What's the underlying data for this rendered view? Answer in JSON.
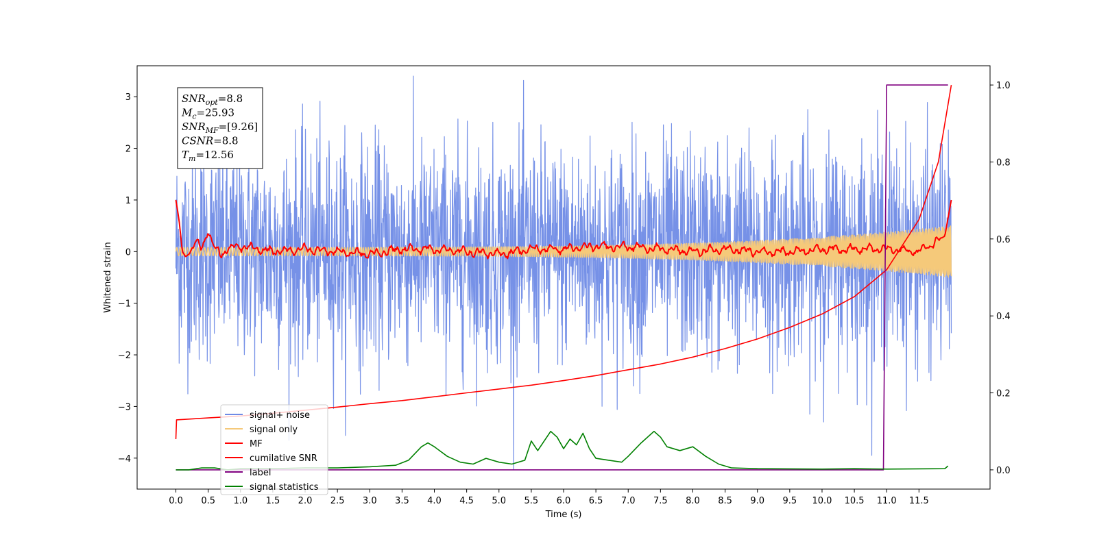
{
  "chart_data": {
    "type": "line",
    "title": "",
    "xlabel": "Time (s)",
    "ylabel": "Whitened strain",
    "xlim": [
      -0.6,
      12.6
    ],
    "ylim": [
      -4.6,
      3.6
    ],
    "y2lim": [
      -0.05,
      1.05
    ],
    "grid": false,
    "legend_position": "lower-left",
    "x_ticks": [
      "0.0",
      "0.5",
      "1.0",
      "1.5",
      "2.0",
      "2.5",
      "3.0",
      "3.5",
      "4.0",
      "4.5",
      "5.0",
      "5.5",
      "6.0",
      "6.5",
      "7.0",
      "7.5",
      "8.0",
      "8.5",
      "9.0",
      "9.5",
      "10.0",
      "10.5",
      "11.0",
      "11.5"
    ],
    "y_ticks": [
      "3",
      "2",
      "1",
      "0",
      "−1",
      "−2",
      "−3",
      "−4"
    ],
    "y2_ticks": [
      "1.0",
      "0.8",
      "0.6",
      "0.4",
      "0.2",
      "0.0"
    ],
    "annotation": {
      "lines": [
        {
          "main": "SNR",
          "sub": "opt",
          "value": "=8.8"
        },
        {
          "main": "M",
          "sub": "c",
          "value": "=25.93"
        },
        {
          "main": "SNR",
          "sub": "MF",
          "value": "=[9.26]"
        },
        {
          "main": "CSNR",
          "sub": "",
          "value": "=8.8"
        },
        {
          "main": "T",
          "sub": "m",
          "value": "=12.56"
        }
      ]
    },
    "series": [
      {
        "name": "signal+ noise",
        "axis": "left",
        "color": "#6f8be6",
        "kind": "noise",
        "x_range": [
          0,
          12.0
        ],
        "amplitude": 3.0
      },
      {
        "name": "signal only",
        "axis": "left",
        "color": "#f5c97a",
        "kind": "chirp",
        "x_range": [
          0,
          12.0
        ],
        "amplitude_start": 0.08,
        "amplitude_end": 0.5
      },
      {
        "name": "MF",
        "axis": "left",
        "color": "#ff0000",
        "x": [
          0.0,
          0.05,
          0.1,
          0.15,
          0.2,
          0.3,
          0.4,
          0.5,
          0.55,
          0.6,
          0.7,
          0.8,
          1.0,
          1.5,
          2.0,
          2.5,
          3.0,
          3.5,
          4.0,
          4.5,
          5.0,
          5.5,
          6.0,
          6.5,
          7.0,
          7.5,
          8.0,
          8.5,
          9.0,
          9.5,
          10.0,
          10.5,
          11.0,
          11.5,
          11.9,
          12.0
        ],
        "y": [
          1.0,
          0.6,
          0.0,
          -0.1,
          -0.05,
          0.2,
          0.05,
          0.45,
          0.2,
          0.05,
          -0.05,
          0.05,
          0.1,
          0.0,
          0.05,
          0.0,
          -0.05,
          0.05,
          0.05,
          0.0,
          -0.05,
          0.05,
          0.05,
          0.1,
          0.1,
          0.05,
          0.0,
          0.05,
          0.0,
          0.0,
          0.05,
          0.05,
          0.05,
          0.0,
          0.3,
          1.0
        ]
      },
      {
        "name": "cumilative SNR",
        "axis": "right",
        "color": "#ff0000",
        "x": [
          0.0,
          0.01,
          0.5,
          1.0,
          1.5,
          2.0,
          2.5,
          3.0,
          3.5,
          4.0,
          4.5,
          5.0,
          5.5,
          6.0,
          6.5,
          7.0,
          7.5,
          8.0,
          8.5,
          9.0,
          9.5,
          10.0,
          10.5,
          11.0,
          11.5,
          11.8,
          12.0
        ],
        "y": [
          0.08,
          0.13,
          0.135,
          0.14,
          0.147,
          0.155,
          0.163,
          0.172,
          0.18,
          0.19,
          0.2,
          0.21,
          0.22,
          0.232,
          0.245,
          0.26,
          0.275,
          0.293,
          0.315,
          0.34,
          0.37,
          0.405,
          0.45,
          0.52,
          0.65,
          0.8,
          1.0
        ]
      },
      {
        "name": "label",
        "axis": "right",
        "color": "#800080",
        "x": [
          0.0,
          10.95,
          11.0,
          11.95
        ],
        "y": [
          0.0,
          0.0,
          1.0,
          1.0
        ]
      },
      {
        "name": "signal statistics",
        "axis": "right",
        "color": "#008000",
        "x": [
          0.0,
          0.2,
          0.4,
          0.6,
          0.8,
          1.0,
          1.5,
          2.0,
          2.5,
          3.0,
          3.2,
          3.4,
          3.6,
          3.8,
          3.9,
          4.0,
          4.2,
          4.4,
          4.6,
          4.8,
          5.0,
          5.2,
          5.4,
          5.5,
          5.6,
          5.8,
          5.9,
          6.0,
          6.1,
          6.2,
          6.3,
          6.4,
          6.5,
          6.7,
          6.9,
          7.0,
          7.2,
          7.4,
          7.5,
          7.6,
          7.8,
          8.0,
          8.2,
          8.4,
          8.6,
          9.0,
          10.0,
          10.5,
          11.0,
          11.9,
          11.95
        ],
        "y": [
          0.0,
          0.0,
          0.005,
          0.005,
          0.0,
          0.003,
          0.003,
          0.005,
          0.005,
          0.008,
          0.01,
          0.012,
          0.025,
          0.06,
          0.07,
          0.06,
          0.035,
          0.02,
          0.015,
          0.03,
          0.02,
          0.015,
          0.025,
          0.075,
          0.05,
          0.1,
          0.085,
          0.055,
          0.08,
          0.065,
          0.095,
          0.055,
          0.03,
          0.025,
          0.02,
          0.035,
          0.07,
          0.1,
          0.085,
          0.06,
          0.05,
          0.06,
          0.035,
          0.015,
          0.005,
          0.003,
          0.002,
          0.003,
          0.002,
          0.003,
          0.01
        ]
      }
    ]
  }
}
